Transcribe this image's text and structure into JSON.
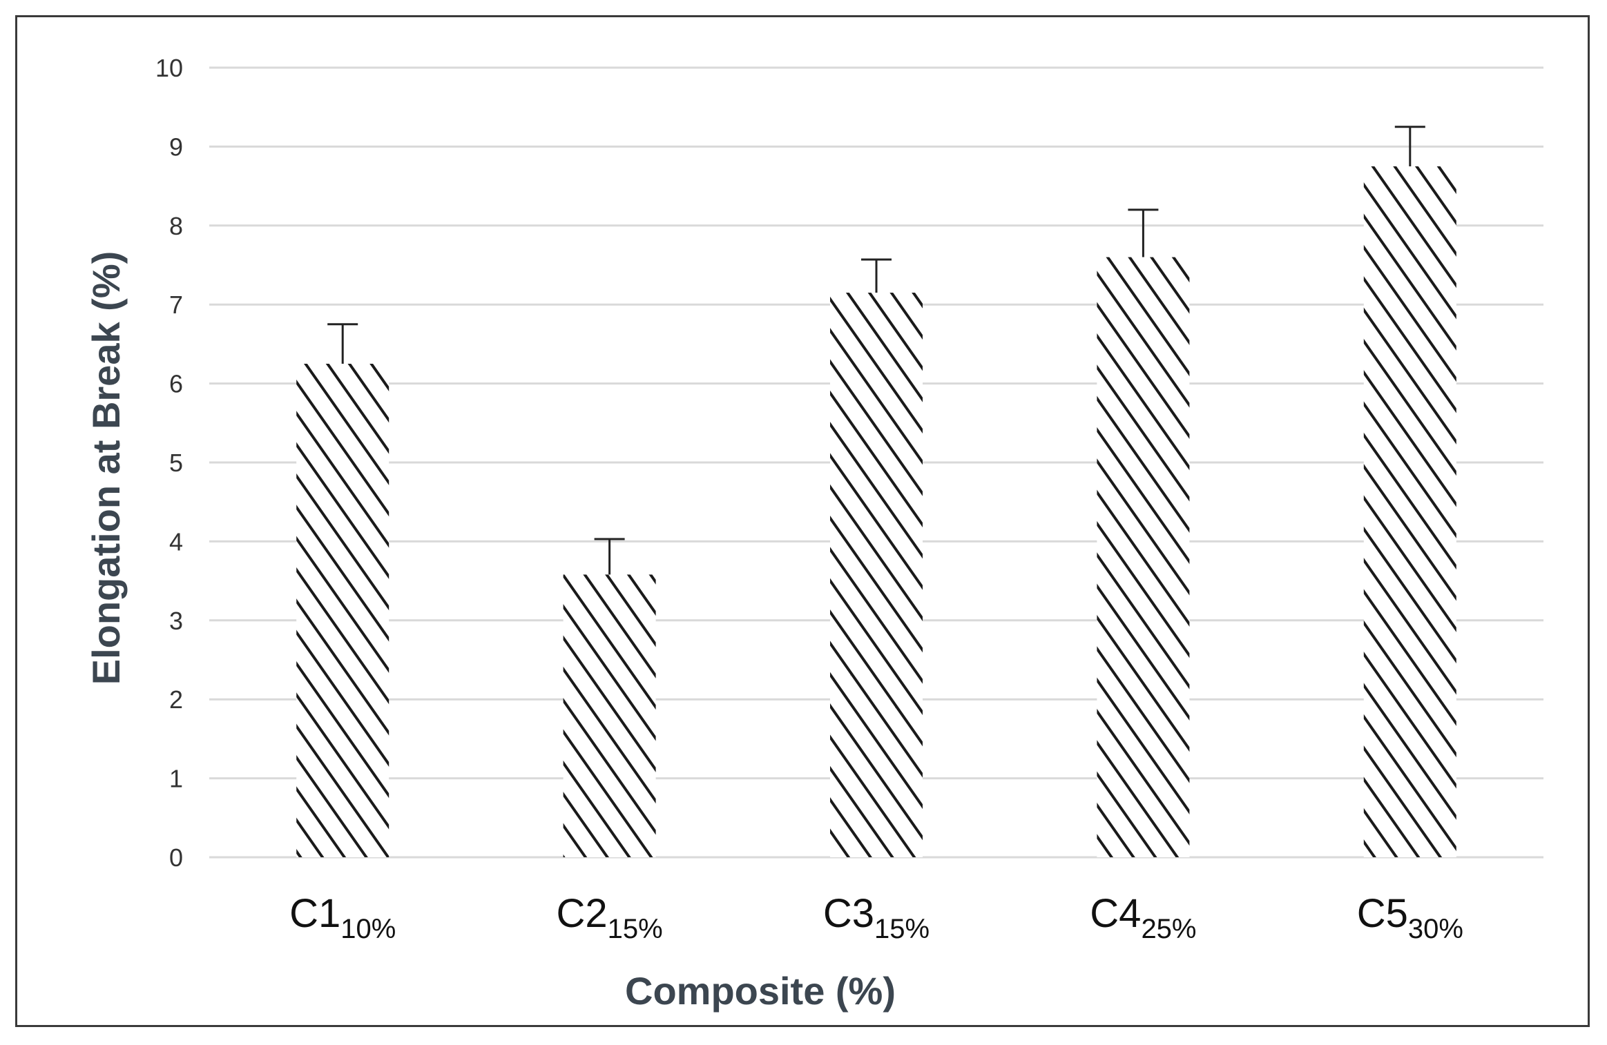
{
  "chart_data": {
    "type": "bar",
    "title": "",
    "xlabel": "Composite (%)",
    "ylabel": "Elongation at Break (%)",
    "categories": [
      {
        "base": "C1",
        "sub": "10%"
      },
      {
        "base": "C2",
        "sub": "15%"
      },
      {
        "base": "C3",
        "sub": "15%"
      },
      {
        "base": "C4",
        "sub": "25%"
      },
      {
        "base": "C5",
        "sub": "30%"
      }
    ],
    "values": [
      6.25,
      3.58,
      7.15,
      7.6,
      8.75
    ],
    "errors": [
      0.5,
      0.45,
      0.42,
      0.6,
      0.5
    ],
    "ylim": [
      0,
      10
    ],
    "yticks": [
      0,
      1,
      2,
      3,
      4,
      5,
      6,
      7,
      8,
      9,
      10
    ],
    "grid": true,
    "legend": "none",
    "bar_fill": "diagonal-hatch",
    "colors": {
      "hatch": "#1a1a1a",
      "grid": "#d9d9d9",
      "error_bar": "#222222",
      "axis_title": "#3c4650"
    }
  }
}
